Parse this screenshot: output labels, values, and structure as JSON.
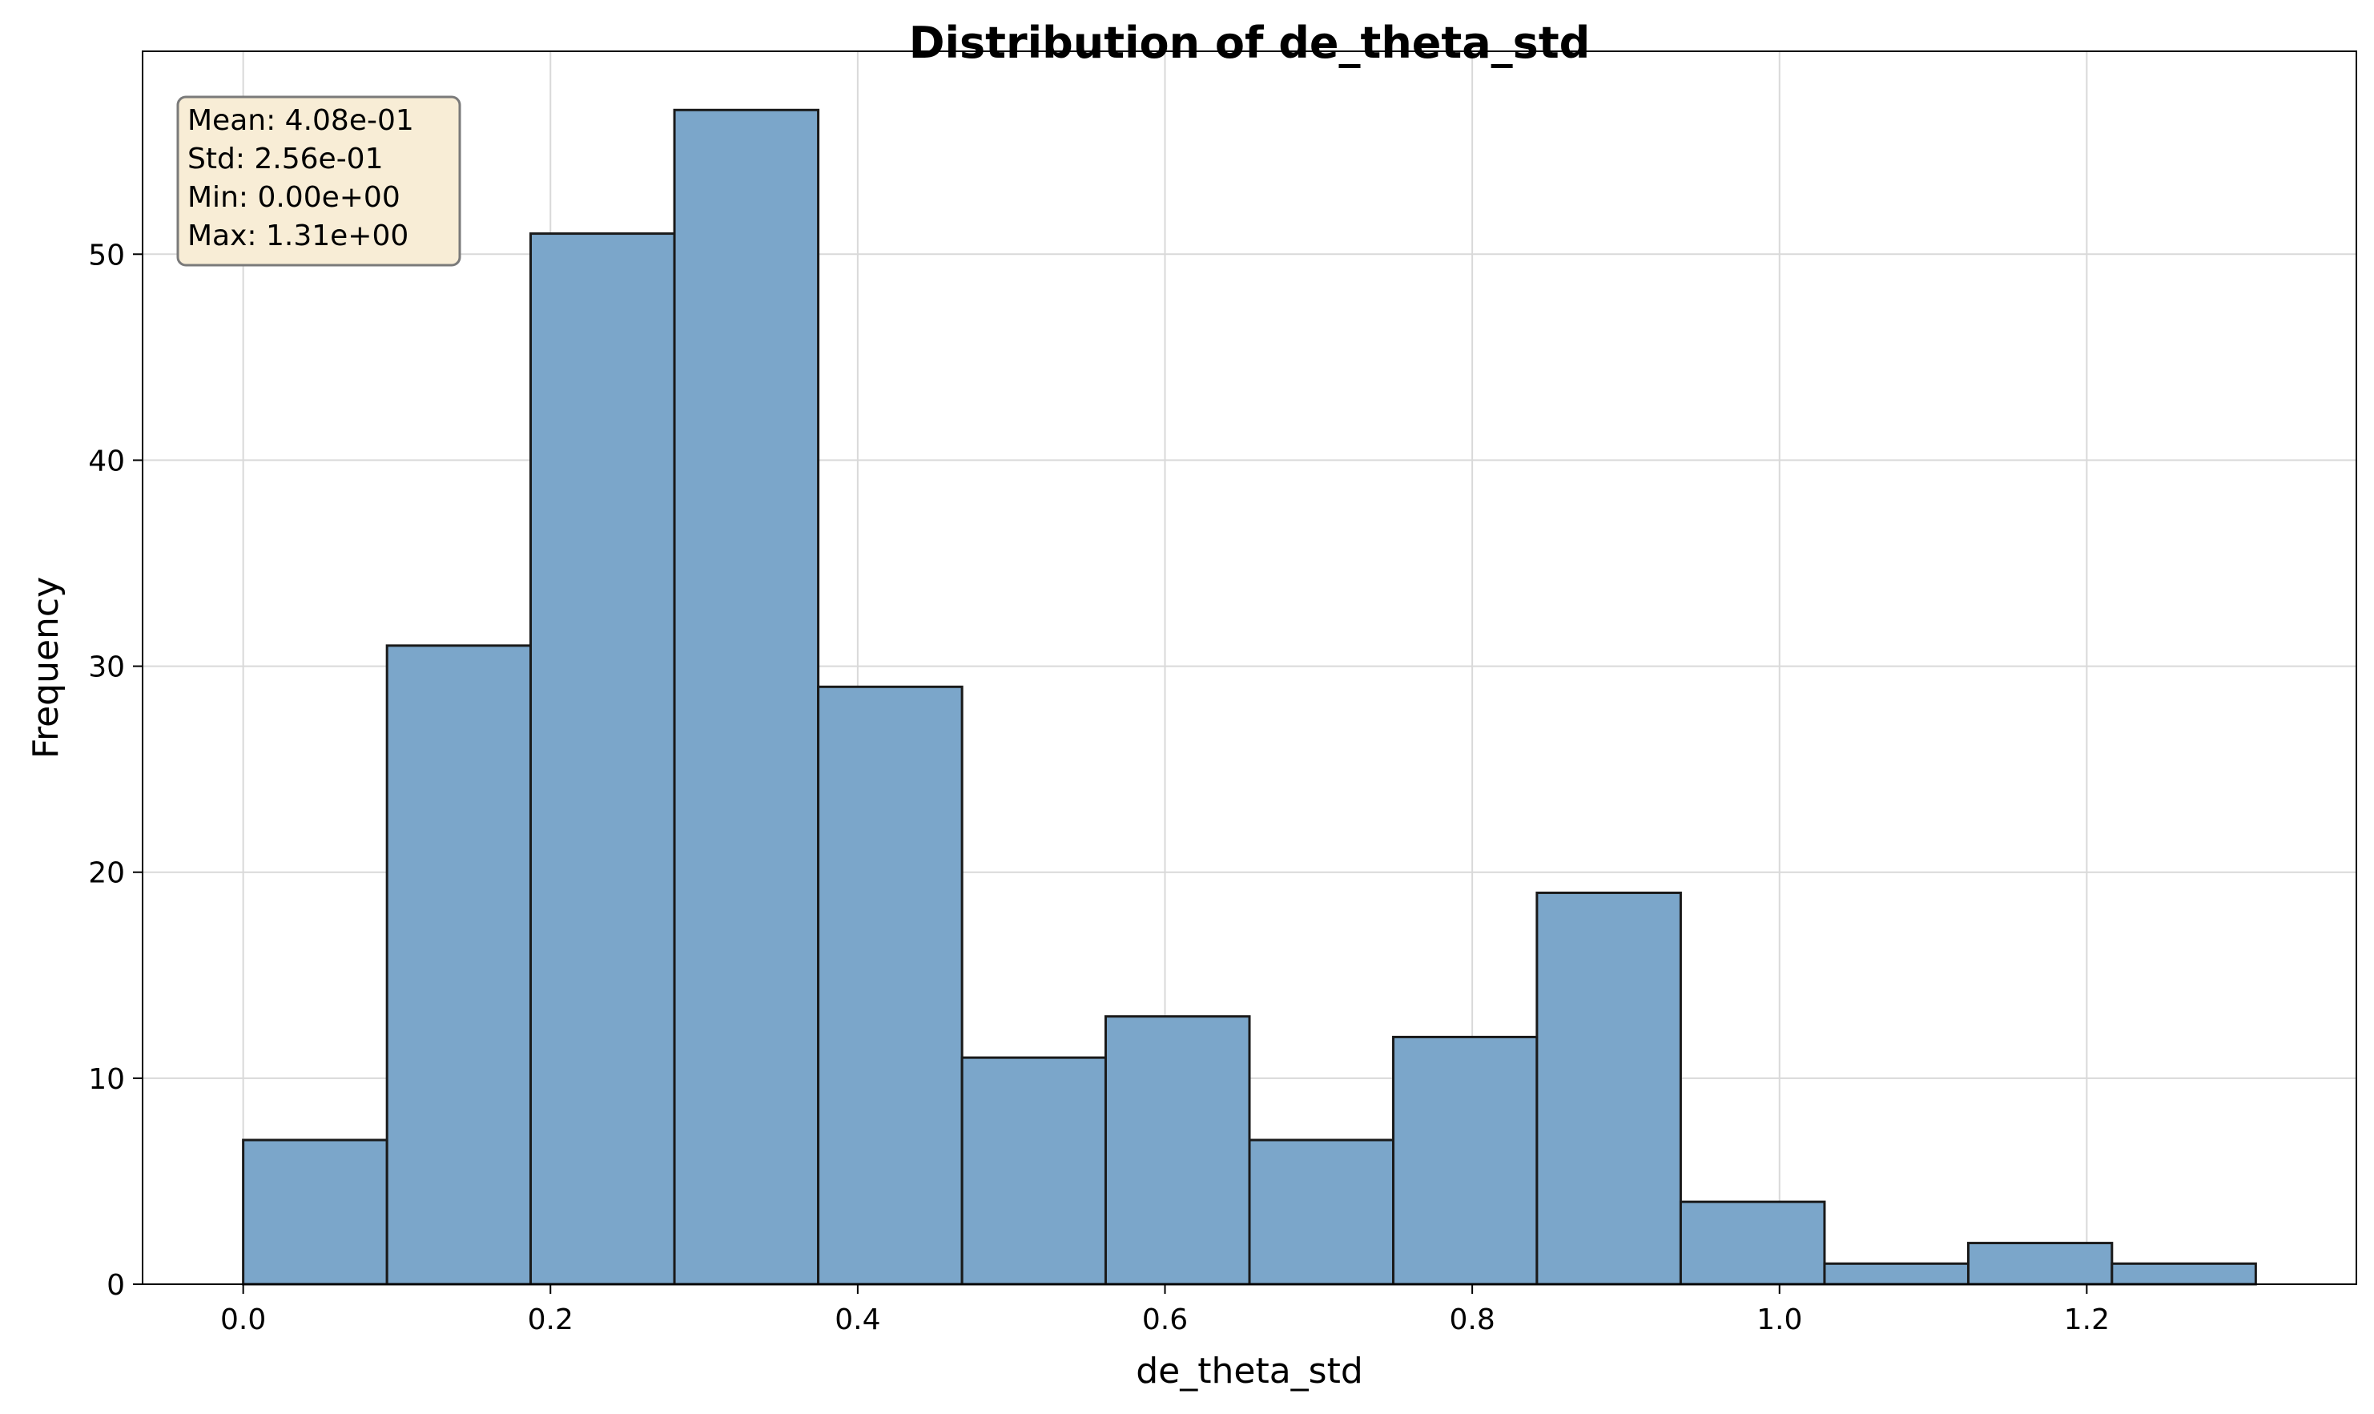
{
  "chart_data": {
    "type": "bar",
    "title": "Distribution of de_theta_std",
    "xlabel": "de_theta_std",
    "ylabel": "Frequency",
    "xlim": [
      -0.0655,
      1.3755
    ],
    "ylim": [
      0,
      59.85
    ],
    "x_ticks": [
      0.0,
      0.2,
      0.4,
      0.6,
      0.8,
      1.0,
      1.2
    ],
    "x_tick_labels": [
      "0.0",
      "0.2",
      "0.4",
      "0.6",
      "0.8",
      "1.0",
      "1.2"
    ],
    "y_ticks": [
      0,
      10,
      20,
      30,
      40,
      50
    ],
    "y_tick_labels": [
      "0",
      "10",
      "20",
      "30",
      "40",
      "50"
    ],
    "bin_edges": [
      0.0,
      0.0936,
      0.1871,
      0.2807,
      0.3743,
      0.4679,
      0.5614,
      0.655,
      0.7486,
      0.8421,
      0.9357,
      1.0293,
      1.1229,
      1.2164,
      1.31
    ],
    "values": [
      7,
      31,
      51,
      57,
      29,
      11,
      13,
      7,
      12,
      19,
      4,
      1,
      2,
      1
    ],
    "grid": true,
    "bar_color": "#7BA6CA",
    "edge_color": "#1a1a1a",
    "stats_box": {
      "lines": [
        "Mean: 4.08e-01",
        "Std: 2.56e-01",
        "Min: 0.00e+00",
        "Max: 1.31e+00"
      ],
      "background": "#F8EDD6",
      "border": "#7a7a7a",
      "position": "top-left"
    }
  }
}
